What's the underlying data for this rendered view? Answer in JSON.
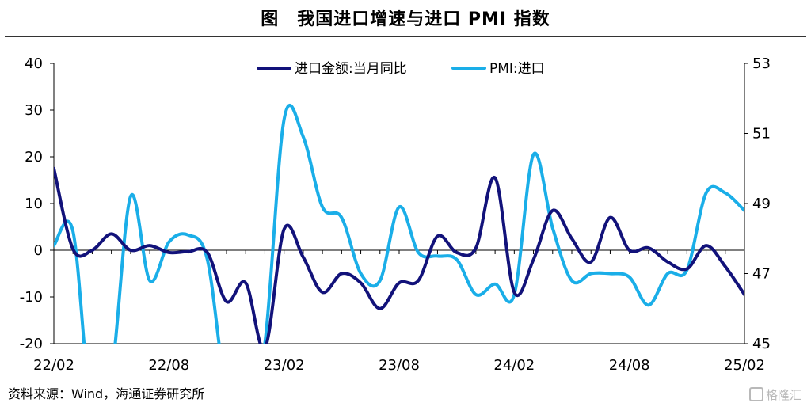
{
  "title": "图　我国进口增速与进口 PMI 指数",
  "source": "资料来源：Wind，海通证券研究所",
  "watermark": "格隆汇",
  "chart_data": {
    "type": "line",
    "x": [
      "22/02",
      "22/03",
      "22/04",
      "22/05",
      "22/06",
      "22/07",
      "22/08",
      "22/09",
      "22/10",
      "22/11",
      "22/12",
      "23/01",
      "23/02",
      "23/03",
      "23/04",
      "23/05",
      "23/06",
      "23/07",
      "23/08",
      "23/09",
      "23/10",
      "23/11",
      "23/12",
      "24/01",
      "24/02",
      "24/03",
      "24/04",
      "24/05",
      "24/06",
      "24/07",
      "24/08",
      "24/09",
      "24/10",
      "24/11",
      "24/12",
      "25/01",
      "25/02"
    ],
    "xticks": [
      "22/02",
      "22/08",
      "23/02",
      "23/08",
      "24/02",
      "24/08",
      "25/02"
    ],
    "y_left": {
      "min": -20,
      "max": 40,
      "ticks": [
        "40",
        "30",
        "20",
        "10",
        "0",
        "-10",
        "-20"
      ]
    },
    "y_right": {
      "min": 45,
      "max": 53,
      "ticks": [
        "53",
        "51",
        "49",
        "47",
        "45"
      ]
    },
    "legend_position": "top-center",
    "colors": {
      "import_yoy": "#12127a",
      "pmi_import": "#1aaee8"
    },
    "series": [
      {
        "name": "进口金额:当月同比",
        "axis": "left",
        "values": [
          17.5,
          0.2,
          0.0,
          3.5,
          0.0,
          1.0,
          -0.5,
          -0.3,
          -0.5,
          -11.0,
          -7.0,
          -21.0,
          4.5,
          -1.5,
          -9.0,
          -5.0,
          -7.0,
          -12.5,
          -7.0,
          -6.5,
          3.0,
          -0.5,
          0.5,
          15.5,
          -9.0,
          -2.0,
          8.5,
          2.5,
          -2.5,
          7.0,
          0.0,
          0.5,
          -2.5,
          -4.0,
          1.0,
          -3.5,
          -9.5
        ]
      },
      {
        "name": "PMI:进口",
        "axis": "right",
        "values": [
          47.8,
          48.2,
          42.9,
          44.1,
          49.2,
          46.8,
          47.9,
          48.1,
          47.4,
          43.6,
          43.0,
          45.0,
          51.4,
          50.9,
          48.9,
          48.6,
          47.0,
          46.8,
          48.9,
          47.6,
          47.5,
          47.4,
          46.4,
          46.7,
          46.4,
          50.4,
          48.3,
          46.8,
          47.0,
          47.0,
          46.9,
          46.1,
          47.0,
          47.1,
          49.3,
          49.3,
          48.8
        ]
      }
    ]
  }
}
